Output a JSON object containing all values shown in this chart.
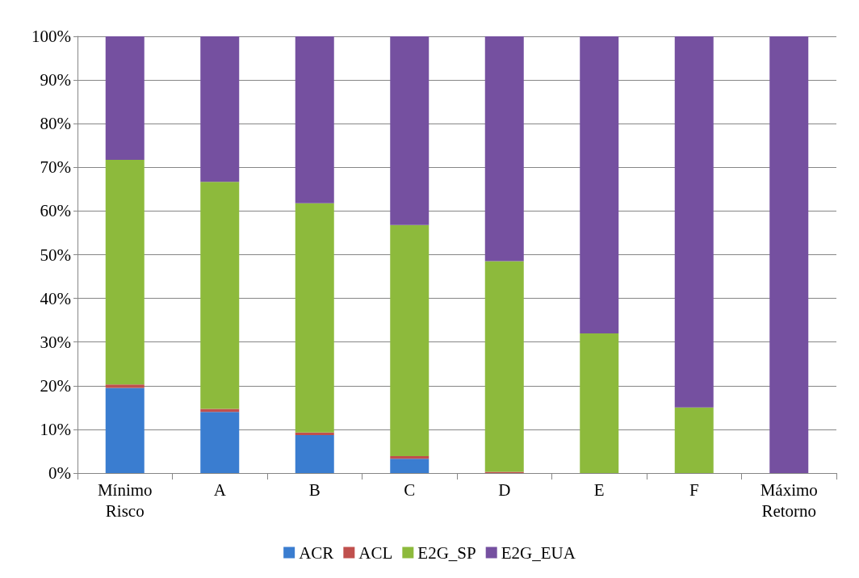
{
  "chart_data": {
    "type": "bar",
    "stacked": true,
    "categories": [
      "Mínimo\nRisco",
      "A",
      "B",
      "C",
      "D",
      "E",
      "F",
      "Máximo\nRetorno"
    ],
    "series": [
      {
        "name": "ACR",
        "color": "#3a7dd0",
        "values": [
          19.5,
          14,
          8.7,
          3.3,
          0,
          0,
          0,
          0
        ]
      },
      {
        "name": "ACL",
        "color": "#c0504d",
        "values": [
          0.8,
          0.7,
          0.6,
          0.6,
          0.3,
          0,
          0,
          0
        ]
      },
      {
        "name": "E2G_SP",
        "color": "#8dba3c",
        "values": [
          51.4,
          52,
          52.5,
          52.9,
          48.2,
          32,
          15,
          0
        ]
      },
      {
        "name": "E2G_EUA",
        "color": "#7550a0",
        "values": [
          28.3,
          33.3,
          38.2,
          43.2,
          51.5,
          68,
          85,
          100
        ]
      }
    ],
    "ylim": [
      0,
      100
    ],
    "yticks": [
      {
        "value": 0,
        "label": "0%"
      },
      {
        "value": 10,
        "label": "10%"
      },
      {
        "value": 20,
        "label": "20%"
      },
      {
        "value": 30,
        "label": "30%"
      },
      {
        "value": 40,
        "label": "40%"
      },
      {
        "value": 50,
        "label": "50%"
      },
      {
        "value": 60,
        "label": "60%"
      },
      {
        "value": 70,
        "label": "70%"
      },
      {
        "value": 80,
        "label": "80%"
      },
      {
        "value": 90,
        "label": "90%"
      },
      {
        "value": 100,
        "label": "100%"
      }
    ],
    "grid": "y",
    "legend": "bottom"
  }
}
